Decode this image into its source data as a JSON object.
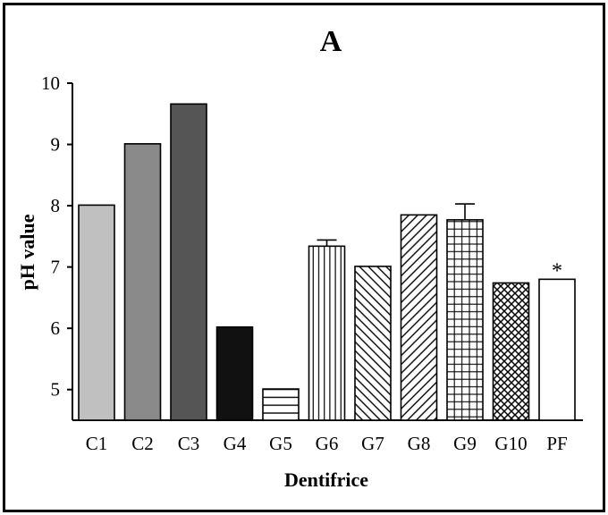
{
  "chart_data": {
    "type": "bar",
    "title": "A",
    "xlabel": "Dentifrice",
    "ylabel": "pH value",
    "ylim": [
      4.5,
      10
    ],
    "yticks": [
      "5",
      "6",
      "7",
      "8",
      "9",
      "10"
    ],
    "categories": [
      "C1",
      "C2",
      "C3",
      "G4",
      "G5",
      "G6",
      "G7",
      "G8",
      "G9",
      "G10",
      "PF"
    ],
    "values": [
      8.01,
      9.01,
      9.66,
      6.02,
      5.01,
      7.34,
      7.01,
      7.85,
      7.77,
      6.74,
      6.8
    ],
    "error_bars": [
      null,
      null,
      null,
      null,
      null,
      0.1,
      null,
      null,
      0.26,
      null,
      null
    ],
    "fills": [
      "light-gray",
      "mid-gray",
      "dark-gray",
      "black",
      "horizontal-lines",
      "vertical-lines",
      "back-diagonal-hatch",
      "forward-diagonal-hatch",
      "grid",
      "crosshatch",
      "white"
    ],
    "annotations": [
      {
        "category": "PF",
        "text": "*"
      }
    ],
    "grid": false,
    "legend": false,
    "colors": {
      "light-gray": "#c0c0c0",
      "mid-gray": "#8a8a8a",
      "dark-gray": "#555555",
      "black": "#111111"
    }
  }
}
